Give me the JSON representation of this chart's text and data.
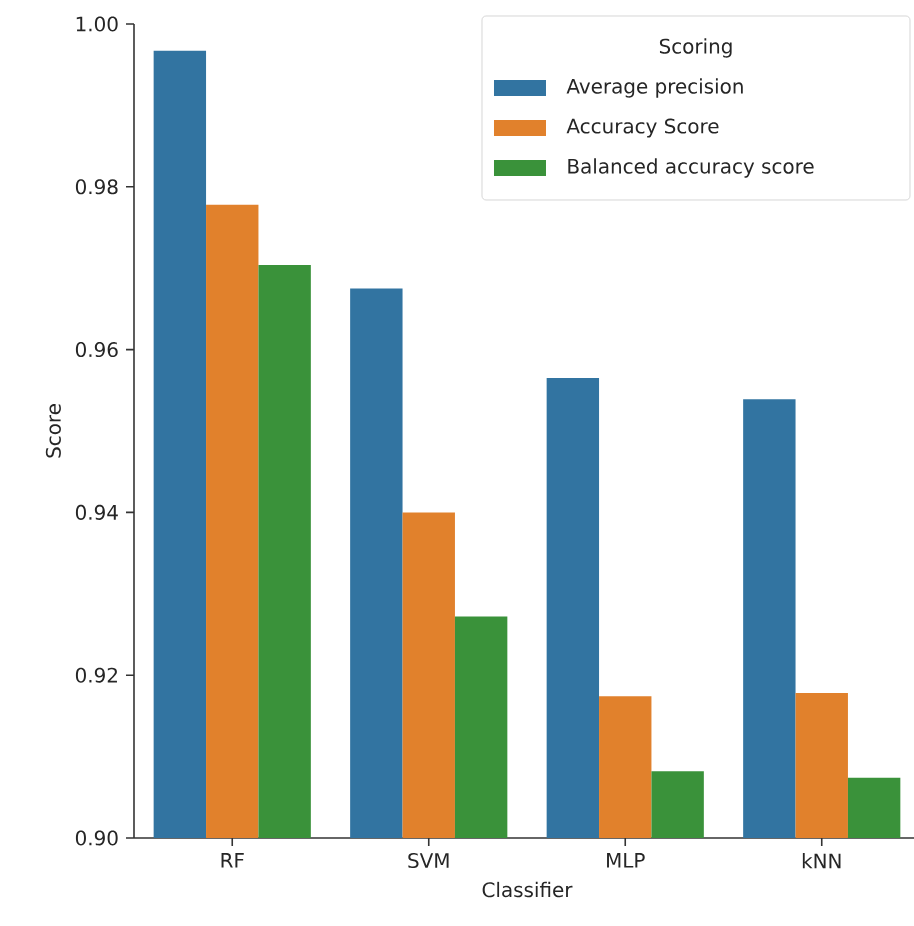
{
  "chart_data": {
    "type": "bar",
    "xlabel": "Classifier",
    "ylabel": "Score",
    "legend_title": "Scoring",
    "categories": [
      "RF",
      "SVM",
      "MLP",
      "kNN"
    ],
    "series": [
      {
        "name": "Average precision",
        "color": "#3274a1",
        "values": [
          0.9967,
          0.9675,
          0.9565,
          0.9539
        ]
      },
      {
        "name": "Accuracy Score",
        "color": "#e1812c",
        "values": [
          0.9778,
          0.94,
          0.9174,
          0.9178
        ]
      },
      {
        "name": "Balanced accuracy score",
        "color": "#3a923a",
        "values": [
          0.9704,
          0.9272,
          0.9082,
          0.9074
        ]
      }
    ],
    "ylim": [
      0.9,
      1.0
    ],
    "yticks": [
      {
        "value": 0.9,
        "label": "0.90"
      },
      0.92,
      0.94,
      0.96,
      0.98,
      {
        "value": 1.0,
        "label": "1.00"
      }
    ],
    "legend": "top right",
    "grid": false
  }
}
